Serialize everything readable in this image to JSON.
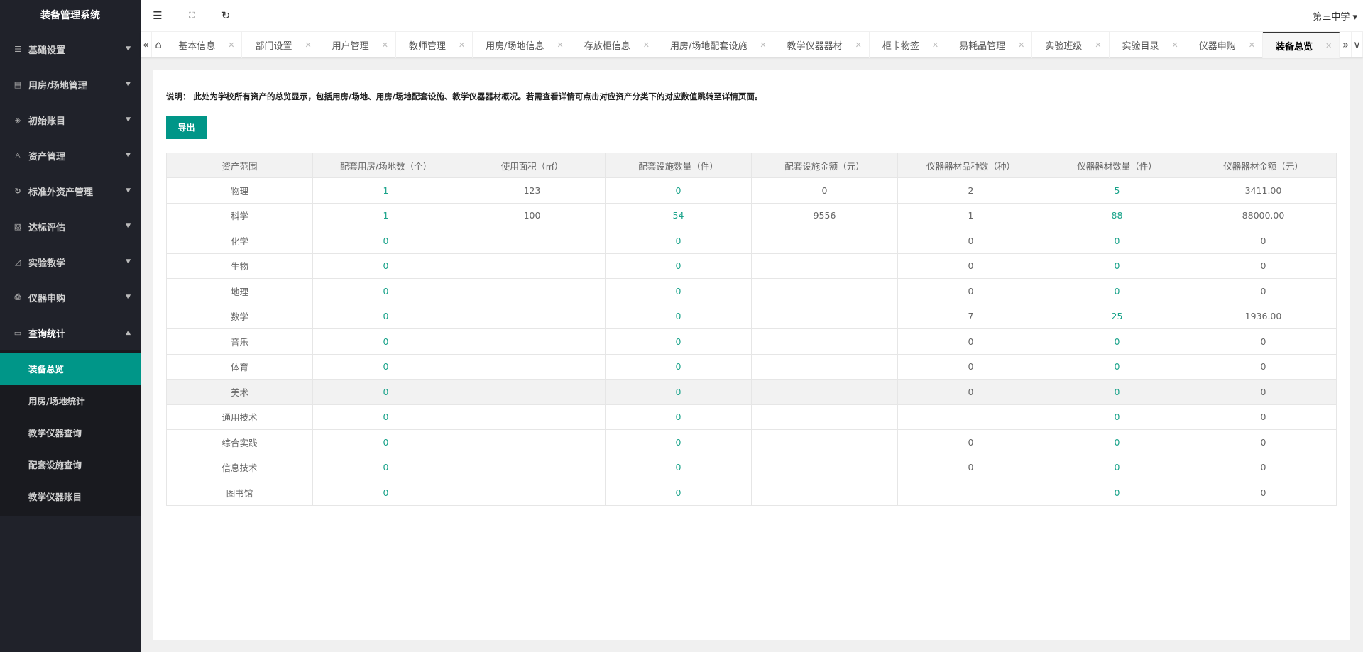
{
  "app": {
    "title": "装备管理系统",
    "school": "第三中学"
  },
  "sidebar": {
    "items": [
      {
        "label": "基础设置",
        "icon": "sliders-icon",
        "glyph": "☰"
      },
      {
        "label": "用房/场地管理",
        "icon": "clipboard-icon",
        "glyph": "▤"
      },
      {
        "label": "初始账目",
        "icon": "layers-icon",
        "glyph": "◈"
      },
      {
        "label": "资产管理",
        "icon": "people-icon",
        "glyph": "♙"
      },
      {
        "label": "标准外资产管理",
        "icon": "refresh-icon",
        "glyph": "↻"
      },
      {
        "label": "达标评估",
        "icon": "document-check-icon",
        "glyph": "▧"
      },
      {
        "label": "实验教学",
        "icon": "chart-icon",
        "glyph": "◿"
      },
      {
        "label": "仪器申购",
        "icon": "printer-icon",
        "glyph": "⎙"
      },
      {
        "label": "查询统计",
        "icon": "monitor-icon",
        "glyph": "▭"
      }
    ],
    "submenu": [
      "装备总览",
      "用房/场地统计",
      "教学仪器查询",
      "配套设施查询",
      "教学仪器账目"
    ]
  },
  "tabs": [
    "基本信息",
    "部门设置",
    "用户管理",
    "教师管理",
    "用房/场地信息",
    "存放柜信息",
    "用房/场地配套设施",
    "教学仪器器材",
    "柜卡物签",
    "易耗品管理",
    "实验班级",
    "实验目录",
    "仪器申购",
    "装备总览"
  ],
  "main": {
    "note": "说明：  此处为学校所有资产的总览显示，包括用房/场地、用房/场地配套设施、教学仪器器材概况。若需查看详情可点击对应资产分类下的对应数值跳转至详情页面。",
    "export_label": "导出",
    "columns": [
      "资产范围",
      "配套用房/场地数（个）",
      "使用面积（㎡）",
      "配套设施数量（件）",
      "配套设施金额（元）",
      "仪器器材品种数（种）",
      "仪器器材数量（件）",
      "仪器器材金额（元）"
    ],
    "rows": [
      [
        "物理",
        "1",
        "123",
        "0",
        "0",
        "2",
        "5",
        "3411.00"
      ],
      [
        "科学",
        "1",
        "100",
        "54",
        "9556",
        "1",
        "88",
        "88000.00"
      ],
      [
        "化学",
        "0",
        "",
        "0",
        "",
        "0",
        "0",
        "0"
      ],
      [
        "生物",
        "0",
        "",
        "0",
        "",
        "0",
        "0",
        "0"
      ],
      [
        "地理",
        "0",
        "",
        "0",
        "",
        "0",
        "0",
        "0"
      ],
      [
        "数学",
        "0",
        "",
        "0",
        "",
        "7",
        "25",
        "1936.00"
      ],
      [
        "音乐",
        "0",
        "",
        "0",
        "",
        "0",
        "0",
        "0"
      ],
      [
        "体育",
        "0",
        "",
        "0",
        "",
        "0",
        "0",
        "0"
      ],
      [
        "美术",
        "0",
        "",
        "0",
        "",
        "0",
        "0",
        "0"
      ],
      [
        "通用技术",
        "0",
        "",
        "0",
        "",
        "",
        "0",
        "0"
      ],
      [
        "综合实践",
        "0",
        "",
        "0",
        "",
        "0",
        "0",
        "0"
      ],
      [
        "信息技术",
        "0",
        "",
        "0",
        "",
        "0",
        "0",
        "0"
      ],
      [
        "图书馆",
        "0",
        "",
        "0",
        "",
        "",
        "0",
        "0"
      ]
    ],
    "link_color": "#19a38a",
    "accent": "#009688"
  }
}
